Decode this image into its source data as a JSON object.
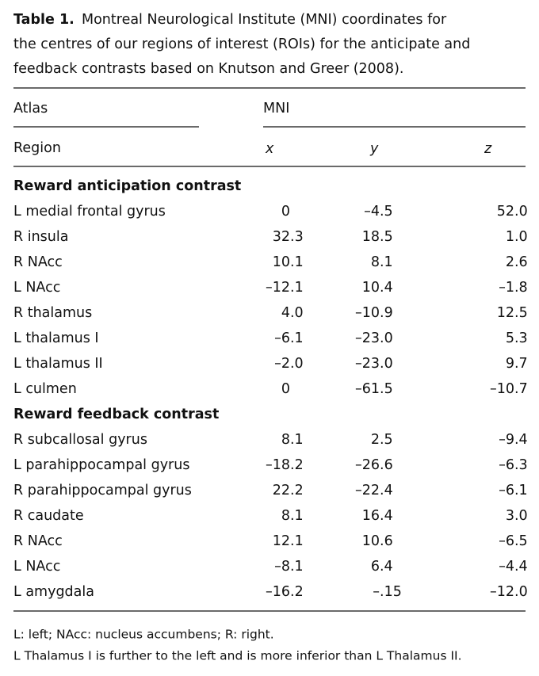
{
  "caption": {
    "label": "Table 1.",
    "lines": [
      "Montreal Neurological Institute (MNI) coordinates for",
      "the centres of our regions of interest (ROIs) for the anticipate and",
      "feedback contrasts based on Knutson and Greer (2008)."
    ]
  },
  "table": {
    "header": {
      "atlas": "Atlas",
      "mni": "MNI",
      "region": "Region",
      "x": "x",
      "y": "y",
      "z": "z"
    },
    "sections": [
      {
        "title": "Reward anticipation contrast",
        "rows": [
          [
            "L medial frontal gyrus",
            "0",
            "–4.5",
            "52.0"
          ],
          [
            "R insula",
            "32.3",
            "18.5",
            "1.0"
          ],
          [
            "R NAcc",
            "10.1",
            "8.1",
            "2.6"
          ],
          [
            "L NAcc",
            "–12.1",
            "10.4",
            "–1.8"
          ],
          [
            "R thalamus",
            "4.0",
            "–10.9",
            "12.5"
          ],
          [
            "L thalamus I",
            "–6.1",
            "–23.0",
            "5.3"
          ],
          [
            "L thalamus II",
            "–2.0",
            "–23.0",
            "9.7"
          ],
          [
            "L culmen",
            "0",
            "–61.5",
            "–10.7"
          ]
        ]
      },
      {
        "title": "Reward feedback contrast",
        "rows": [
          [
            "R subcallosal gyrus",
            "8.1",
            "2.5",
            "–9.4"
          ],
          [
            "L parahippocampal gyrus",
            "–18.2",
            "–26.6",
            "–6.3"
          ],
          [
            "R parahippocampal gyrus",
            "22.2",
            "–22.4",
            "–6.1"
          ],
          [
            "R caudate",
            "8.1",
            "16.4",
            "3.0"
          ],
          [
            "R NAcc",
            "12.1",
            "10.6",
            "–6.5"
          ],
          [
            "L NAcc",
            "–8.1",
            "6.4",
            "–4.4"
          ],
          [
            "L amygdala",
            "–16.2",
            "–.15",
            "–12.0"
          ]
        ]
      }
    ]
  },
  "footnotes": [
    "L: left; NAcc: nucleus accumbens; R: right.",
    "L Thalamus I is further to the left and is more inferior than L Thalamus II."
  ]
}
